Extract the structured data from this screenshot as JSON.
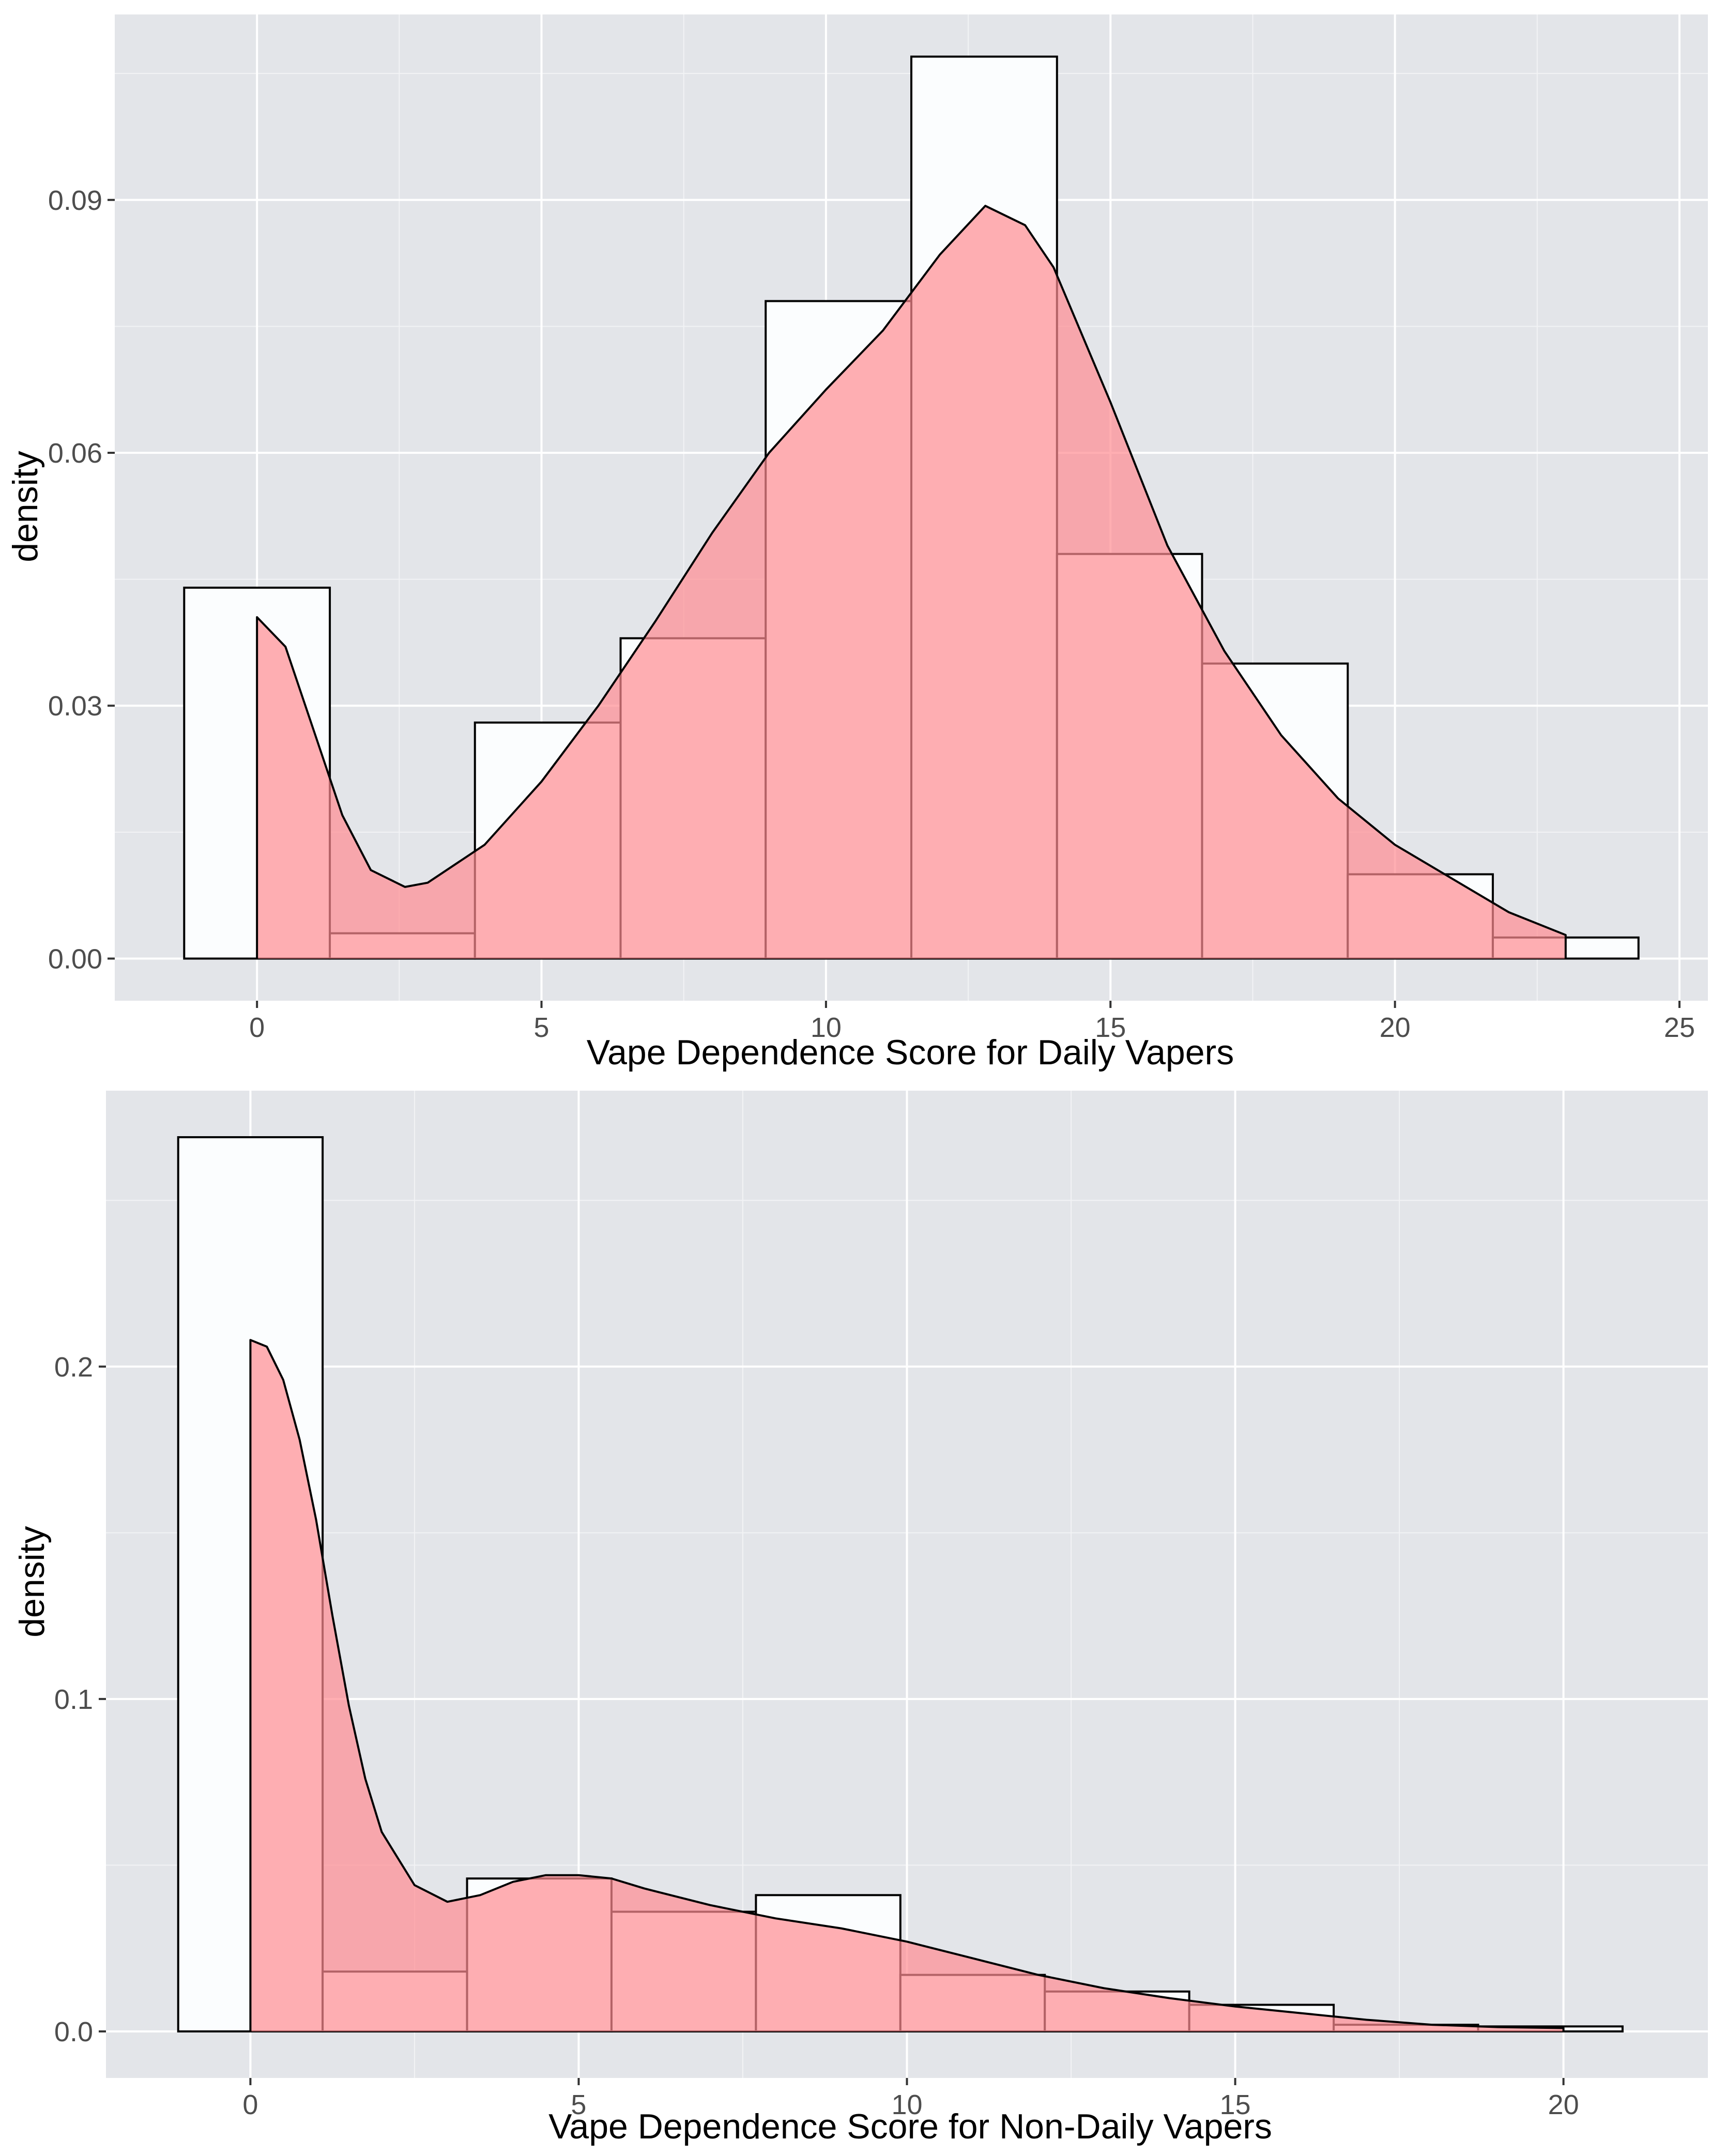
{
  "chart_data": [
    {
      "type": "histogram",
      "xlabel": "Vape Dependence Score for Daily Vapers",
      "ylabel": "density",
      "xlim": [
        -2.5,
        25.5
      ],
      "ylim": [
        -0.005,
        0.112
      ],
      "x_ticks": [
        0,
        5,
        10,
        15,
        20,
        25
      ],
      "x_tick_labels": [
        "0",
        "5",
        "10",
        "15",
        "20",
        "25"
      ],
      "y_ticks": [
        0,
        0.03,
        0.06,
        0.09
      ],
      "y_tick_labels": [
        "0.00",
        "0.03",
        "0.06",
        "0.09"
      ],
      "grid": true,
      "histogram_bins": [
        {
          "x0": -1.28,
          "x1": 1.28,
          "density": 0.044
        },
        {
          "x0": 1.28,
          "x1": 3.83,
          "density": 0.003
        },
        {
          "x0": 3.83,
          "x1": 6.39,
          "density": 0.028
        },
        {
          "x0": 6.39,
          "x1": 8.94,
          "density": 0.038
        },
        {
          "x0": 8.94,
          "x1": 11.5,
          "density": 0.078
        },
        {
          "x0": 11.5,
          "x1": 14.06,
          "density": 0.107
        },
        {
          "x0": 14.06,
          "x1": 16.61,
          "density": 0.048
        },
        {
          "x0": 16.61,
          "x1": 19.17,
          "density": 0.035
        },
        {
          "x0": 19.17,
          "x1": 21.72,
          "density": 0.01
        },
        {
          "x0": 21.72,
          "x1": 24.28,
          "density": 0.0025
        }
      ],
      "density_curve": {
        "x": [
          0,
          0.5,
          1,
          1.5,
          2,
          2.6,
          3,
          4,
          5,
          6,
          7,
          8,
          9,
          10,
          11,
          12,
          12.8,
          13.5,
          14,
          15,
          16,
          17,
          18,
          19,
          20,
          21,
          22,
          23
        ],
        "y": [
          0.0405,
          0.037,
          0.027,
          0.017,
          0.0105,
          0.0085,
          0.009,
          0.0135,
          0.021,
          0.03,
          0.04,
          0.0505,
          0.06,
          0.0675,
          0.0745,
          0.0835,
          0.0893,
          0.087,
          0.082,
          0.066,
          0.049,
          0.0365,
          0.0265,
          0.019,
          0.0135,
          0.0095,
          0.0055,
          0.0028
        ]
      },
      "colors": {
        "panel": "#e3e5e9",
        "bar_fill": "#fbfdfe",
        "density_fill": "#ff8c92"
      }
    },
    {
      "type": "histogram",
      "xlabel": "Vape Dependence Score for Non-Daily Vapers",
      "ylabel": "density",
      "xlim": [
        -2.2,
        22.2
      ],
      "ylim": [
        -0.014,
        0.283
      ],
      "x_ticks": [
        0,
        5,
        10,
        15,
        20
      ],
      "x_tick_labels": [
        "0",
        "5",
        "10",
        "15",
        "20"
      ],
      "y_ticks": [
        0,
        0.1,
        0.2
      ],
      "y_tick_labels": [
        "0.0",
        "0.1",
        "0.2"
      ],
      "grid": true,
      "histogram_bins": [
        {
          "x0": -1.1,
          "x1": 1.1,
          "density": 0.269
        },
        {
          "x0": 1.1,
          "x1": 3.3,
          "density": 0.018
        },
        {
          "x0": 3.3,
          "x1": 5.5,
          "density": 0.046
        },
        {
          "x0": 5.5,
          "x1": 7.7,
          "density": 0.036
        },
        {
          "x0": 7.7,
          "x1": 9.9,
          "density": 0.041
        },
        {
          "x0": 9.9,
          "x1": 12.1,
          "density": 0.017
        },
        {
          "x0": 12.1,
          "x1": 14.3,
          "density": 0.012
        },
        {
          "x0": 14.3,
          "x1": 16.5,
          "density": 0.008
        },
        {
          "x0": 16.5,
          "x1": 18.7,
          "density": 0.002
        },
        {
          "x0": 18.7,
          "x1": 20.9,
          "density": 0.0015
        }
      ],
      "density_curve": {
        "x": [
          0,
          0.25,
          0.5,
          0.75,
          1,
          1.25,
          1.5,
          1.75,
          2,
          2.5,
          3,
          3.5,
          4,
          4.5,
          5,
          5.5,
          6,
          7,
          8,
          9,
          10,
          11,
          12,
          13,
          14,
          15,
          16,
          17,
          18,
          19,
          20
        ],
        "y": [
          0.208,
          0.206,
          0.196,
          0.178,
          0.154,
          0.125,
          0.098,
          0.076,
          0.06,
          0.044,
          0.039,
          0.041,
          0.045,
          0.047,
          0.047,
          0.046,
          0.043,
          0.038,
          0.034,
          0.031,
          0.027,
          0.022,
          0.017,
          0.013,
          0.01,
          0.0075,
          0.0055,
          0.0035,
          0.002,
          0.0013,
          0.001
        ]
      },
      "colors": {
        "panel": "#e3e5e9",
        "bar_fill": "#fbfdfe",
        "density_fill": "#ff8c92"
      }
    }
  ]
}
